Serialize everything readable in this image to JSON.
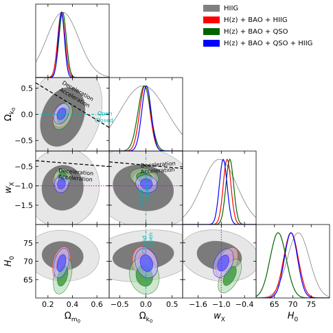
{
  "chart_data": {
    "type": "scatter",
    "subtype": "corner-triangle-plot",
    "parameters": [
      {
        "key": "Om0",
        "label_main": "Ω",
        "label_sub": "m",
        "label_subsub": "0",
        "range": [
          0.1,
          0.7
        ],
        "ticks": [
          0.2,
          0.4,
          0.6
        ],
        "tick_labels": [
          "0.2",
          "0.4",
          "0.6"
        ]
      },
      {
        "key": "Ok0",
        "label_main": "Ω",
        "label_sub": "k",
        "label_subsub": "0",
        "range": [
          -0.7,
          0.7
        ],
        "ticks": [
          -0.5,
          0.0,
          0.5
        ],
        "tick_labels": [
          "−0.5",
          "0.0",
          "0.5"
        ]
      },
      {
        "key": "wX",
        "label_main": "w",
        "label_sub": "X",
        "label_subsub": "",
        "range": [
          -2.0,
          -0.1
        ],
        "ticks": [
          -1.6,
          -1.0,
          -0.4
        ],
        "tick_labels": [
          "−1.6",
          "−1.0",
          "−0.4"
        ],
        "yticks": [
          -1.5,
          -1.0,
          -0.5
        ],
        "ytick_labels": [
          "−1.5",
          "−1.0",
          "−0.5"
        ]
      },
      {
        "key": "H0",
        "label_main": "H",
        "label_sub": "0",
        "label_subsub": "",
        "range": [
          60,
          80
        ],
        "ticks": [
          65,
          70,
          75
        ],
        "tick_labels": [
          "65",
          "70",
          "75"
        ]
      }
    ],
    "series": [
      {
        "name": "HIIG",
        "color": "#808080",
        "fill_inner": "#606060",
        "fill_outer": "#d4d4d4",
        "mean": {
          "Om0": 0.32,
          "Ok0": -0.05,
          "wX": -1.05,
          "H0": 71.5
        },
        "sd": {
          "Om0": 0.13,
          "Ok0": 0.45,
          "wX": 0.45,
          "H0": 3.0
        }
      },
      {
        "name": "H(z) + BAO + HIIG",
        "color": "#ff0000",
        "fill_inner": "#ff8080",
        "fill_outer": "#ffc8c8",
        "mean": {
          "Om0": 0.31,
          "Ok0": -0.02,
          "wX": -0.85,
          "H0": 69.5
        },
        "sd": {
          "Om0": 0.03,
          "Ok0": 0.1,
          "wX": 0.1,
          "H0": 2.0
        }
      },
      {
        "name": "H(z) + BAO + QSO",
        "color": "#006400",
        "fill_inner": "#3a9a3a",
        "fill_outer": "#a8d4a8",
        "mean": {
          "Om0": 0.32,
          "Ok0": -0.03,
          "wX": -0.78,
          "H0": 66.0
        },
        "sd": {
          "Om0": 0.03,
          "Ok0": 0.12,
          "wX": 0.1,
          "H0": 2.2
        }
      },
      {
        "name": "H(z) + BAO + QSO + HIIG",
        "color": "#0000ff",
        "fill_inner": "#5a5aff",
        "fill_outer": "#b4b4ff",
        "mean": {
          "Om0": 0.31,
          "Ok0": 0.01,
          "wX": -0.95,
          "H0": 69.5
        },
        "sd": {
          "Om0": 0.025,
          "Ok0": 0.09,
          "wX": 0.1,
          "H0": 1.8
        }
      }
    ],
    "reference_lines": {
      "wX_minus1_color": "#c000c0",
      "Ok0_zero_color": "#00b4b4"
    },
    "annotations": {
      "deceleration": "Deceleration",
      "acceleration": "Acceleration",
      "open": "Open",
      "closed": "Closed"
    },
    "legend": {
      "position": "top-right"
    }
  }
}
